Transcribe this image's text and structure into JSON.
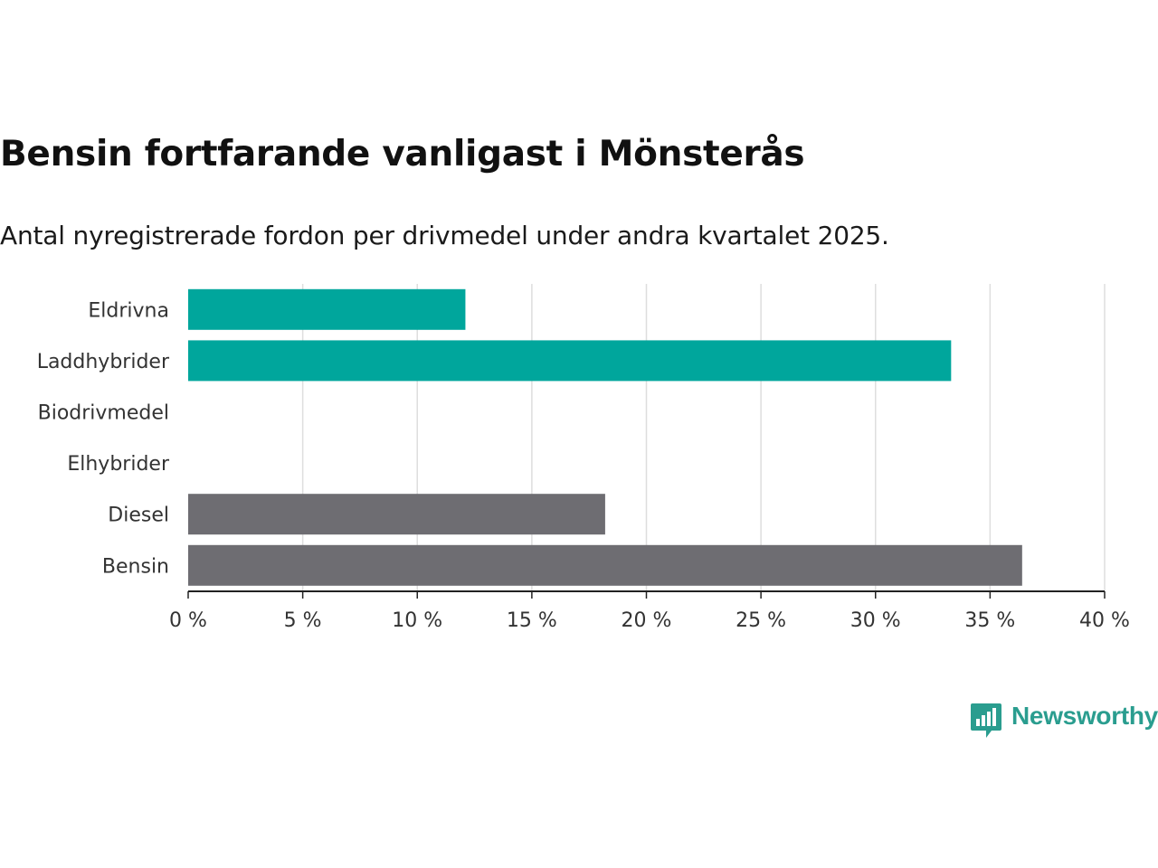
{
  "chart_data": {
    "type": "bar",
    "orientation": "horizontal",
    "title": "Bensin fortfarande vanligast i Mönsterås",
    "subtitle": "Antal nyregistrerade fordon per drivmedel under andra kvartalet 2025.",
    "categories": [
      "Eldrivna",
      "Laddhybrider",
      "Biodrivmedel",
      "Elhybrider",
      "Diesel",
      "Bensin"
    ],
    "values": [
      12.1,
      33.3,
      0,
      0,
      18.2,
      36.4
    ],
    "bar_colors": [
      "#00a69c",
      "#00a69c",
      "#00a69c",
      "#00a69c",
      "#6e6d72",
      "#6e6d72"
    ],
    "xlim": [
      0,
      40
    ],
    "xticks": [
      0,
      5,
      10,
      15,
      20,
      25,
      30,
      35,
      40
    ],
    "tick_suffix": " %",
    "grid": true
  },
  "brand": {
    "name": "Newsworthy",
    "color": "#2a9d8f",
    "icon": "newsworthy-logo-icon"
  }
}
